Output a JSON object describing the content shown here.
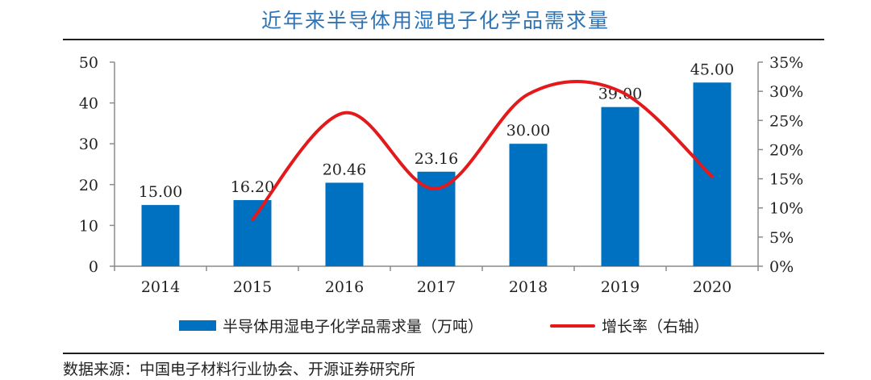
{
  "title": "近年来半导体用湿电子化学品需求量",
  "source": "数据来源：中国电子材料行业协会、开源证券研究所",
  "colors": {
    "bar": "#0070c0",
    "line": "#e3191b",
    "title": "#2e74b5"
  },
  "chart_data": {
    "type": "bar",
    "categories": [
      "2014",
      "2015",
      "2016",
      "2017",
      "2018",
      "2019",
      "2020"
    ],
    "series": [
      {
        "name": "半导体用湿电子化学品需求量（万吨）",
        "type": "bar",
        "axis": "left",
        "values": [
          15.0,
          16.2,
          20.46,
          23.16,
          30.0,
          39.0,
          45.0
        ],
        "labels": [
          "15.00",
          "16.20",
          "20.46",
          "23.16",
          "30.00",
          "39.00",
          "45.00"
        ]
      },
      {
        "name": "增长率（右轴）",
        "type": "line",
        "axis": "right",
        "values": [
          null,
          8.0,
          26.3,
          13.3,
          29.5,
          30.0,
          15.4
        ]
      }
    ],
    "y_left": {
      "lim": [
        0,
        50
      ],
      "ticks": [
        "0",
        "10",
        "20",
        "30",
        "40",
        "50"
      ]
    },
    "y_right": {
      "lim": [
        0,
        35
      ],
      "ticks": [
        "0%",
        "5%",
        "10%",
        "15%",
        "20%",
        "25%",
        "30%",
        "35%"
      ]
    },
    "legend_position": "bottom",
    "grid": false
  }
}
